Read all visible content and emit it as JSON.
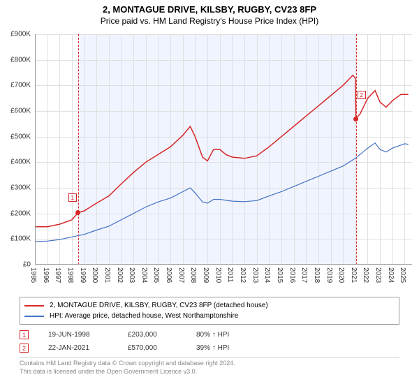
{
  "header": {
    "title": "2, MONTAGUE DRIVE, KILSBY, RUGBY, CV23 8FP",
    "subtitle": "Price paid vs. HM Land Registry's House Price Index (HPI)",
    "title_fontsize": 13,
    "subtitle_fontsize": 12
  },
  "chart": {
    "type": "line",
    "background_color": "#ffffff",
    "grid_color": "#e0e0e0",
    "axis_color": "#999999",
    "xlim": [
      1995,
      2025.6
    ],
    "ylim": [
      0,
      900
    ],
    "shaded_range": {
      "start": 1998.5,
      "end": 2021.05,
      "color": "#f0f4ff"
    },
    "marker_vlines": {
      "color": "#d62728"
    },
    "xticks": {
      "step": 1,
      "values": [
        1995,
        1996,
        1997,
        1998,
        1999,
        2000,
        2001,
        2002,
        2003,
        2004,
        2005,
        2006,
        2007,
        2008,
        2009,
        2010,
        2011,
        2012,
        2013,
        2014,
        2015,
        2016,
        2017,
        2018,
        2019,
        2020,
        2021,
        2022,
        2023,
        2024,
        2025
      ],
      "labels": [
        "1995",
        "1996",
        "1997",
        "1998",
        "1999",
        "2000",
        "2001",
        "2002",
        "2003",
        "2004",
        "2005",
        "2006",
        "2007",
        "2008",
        "2009",
        "2010",
        "2011",
        "2012",
        "2013",
        "2014",
        "2015",
        "2016",
        "2017",
        "2018",
        "2019",
        "2020",
        "2021",
        "2022",
        "2023",
        "2024",
        "2025"
      ],
      "fontsize": 10,
      "rotation": 90
    },
    "yticks": {
      "step": 100,
      "values": [
        0,
        100,
        200,
        300,
        400,
        500,
        600,
        700,
        800,
        900
      ],
      "labels": [
        "£0",
        "£100K",
        "£200K",
        "£300K",
        "£400K",
        "£500K",
        "£600K",
        "£700K",
        "£800K",
        "£900K"
      ],
      "fontsize": 10
    },
    "series": [
      {
        "id": "price_paid",
        "label": "2, MONTAGUE DRIVE, KILSBY, RUGBY, CV23 8FP (detached house)",
        "color": "#d62728",
        "line_width": 1.5,
        "data": [
          [
            1995,
            148
          ],
          [
            1996,
            148
          ],
          [
            1997,
            158
          ],
          [
            1998,
            175
          ],
          [
            1998.5,
            203
          ],
          [
            1999,
            210
          ],
          [
            2000,
            240
          ],
          [
            2001,
            268
          ],
          [
            2002,
            315
          ],
          [
            2003,
            360
          ],
          [
            2004,
            400
          ],
          [
            2005,
            430
          ],
          [
            2006,
            460
          ],
          [
            2007,
            505
          ],
          [
            2007.6,
            540
          ],
          [
            2008,
            500
          ],
          [
            2008.6,
            420
          ],
          [
            2009,
            405
          ],
          [
            2009.5,
            450
          ],
          [
            2010,
            450
          ],
          [
            2010.5,
            430
          ],
          [
            2011,
            420
          ],
          [
            2012,
            415
          ],
          [
            2013,
            425
          ],
          [
            2014,
            460
          ],
          [
            2015,
            500
          ],
          [
            2016,
            540
          ],
          [
            2017,
            580
          ],
          [
            2018,
            620
          ],
          [
            2019,
            660
          ],
          [
            2020,
            700
          ],
          [
            2020.8,
            740
          ],
          [
            2021.0,
            728
          ],
          [
            2021.05,
            570
          ],
          [
            2021.4,
            590
          ],
          [
            2022,
            650
          ],
          [
            2022.6,
            680
          ],
          [
            2023,
            635
          ],
          [
            2023.5,
            615
          ],
          [
            2024,
            640
          ],
          [
            2024.7,
            665
          ],
          [
            2025.3,
            665
          ]
        ]
      },
      {
        "id": "hpi",
        "label": "HPI: Average price, detached house, West Northamptonshire",
        "color": "#4472c4",
        "line_width": 1.2,
        "data": [
          [
            1995,
            90
          ],
          [
            1996,
            92
          ],
          [
            1997,
            98
          ],
          [
            1998,
            108
          ],
          [
            1999,
            118
          ],
          [
            2000,
            135
          ],
          [
            2001,
            150
          ],
          [
            2002,
            175
          ],
          [
            2003,
            200
          ],
          [
            2004,
            225
          ],
          [
            2005,
            245
          ],
          [
            2006,
            260
          ],
          [
            2007,
            285
          ],
          [
            2007.6,
            300
          ],
          [
            2008,
            280
          ],
          [
            2008.6,
            245
          ],
          [
            2009,
            240
          ],
          [
            2009.5,
            255
          ],
          [
            2010,
            255
          ],
          [
            2011,
            248
          ],
          [
            2012,
            246
          ],
          [
            2013,
            250
          ],
          [
            2014,
            268
          ],
          [
            2015,
            285
          ],
          [
            2016,
            305
          ],
          [
            2017,
            325
          ],
          [
            2018,
            345
          ],
          [
            2019,
            365
          ],
          [
            2020,
            385
          ],
          [
            2021,
            415
          ],
          [
            2022,
            455
          ],
          [
            2022.6,
            475
          ],
          [
            2023,
            450
          ],
          [
            2023.5,
            440
          ],
          [
            2024,
            455
          ],
          [
            2025,
            472
          ],
          [
            2025.3,
            470
          ]
        ]
      }
    ],
    "markers": [
      {
        "n": "1",
        "x": 1998.5,
        "y": 203,
        "box_dx": -14,
        "box_dy": -28
      },
      {
        "n": "2",
        "x": 2021.05,
        "y": 570,
        "box_dx": 2,
        "box_dy": -40
      }
    ]
  },
  "legend": {
    "border_color": "#999999",
    "fontsize": 10,
    "rows": [
      {
        "color": "#d62728",
        "label_path": "chart.series.0.label"
      },
      {
        "color": "#4472c4",
        "label_path": "chart.series.1.label"
      }
    ]
  },
  "sales": [
    {
      "n": "1",
      "date": "19-JUN-1998",
      "price": "£203,000",
      "delta": "80% ↑ HPI"
    },
    {
      "n": "2",
      "date": "22-JAN-2021",
      "price": "£570,000",
      "delta": "39% ↑ HPI"
    }
  ],
  "footer": {
    "line1": "Contains HM Land Registry data © Crown copyright and database right 2024.",
    "line2": "This data is licensed under the Open Government Licence v3.0."
  }
}
